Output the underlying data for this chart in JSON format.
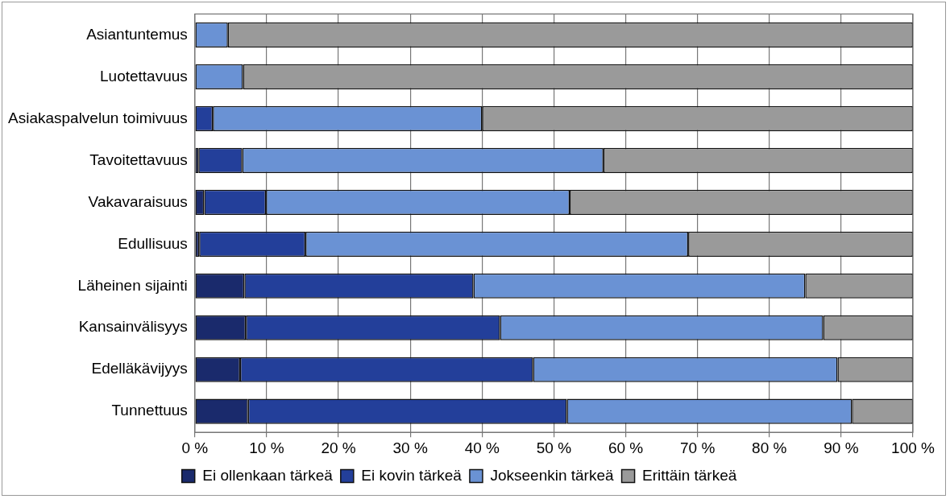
{
  "chart_data": {
    "type": "bar",
    "orientation": "horizontal",
    "stacked": true,
    "categories": [
      "Asiantuntemus",
      "Luotettavuus",
      "Asiakaspalvelun toimivuus",
      "Tavoitettavuus",
      "Vakavaraisuus",
      "Edullisuus",
      "Läheinen sijainti",
      "Kansainvälisyys",
      "Edelläkävijyys",
      "Tunnettuus"
    ],
    "series": [
      {
        "name": "Ei ollenkaan tärkeä",
        "color": "#1a2a6c",
        "values": [
          0,
          0,
          0,
          0.5,
          1.3,
          0.6,
          6.9,
          7.1,
          6.3,
          7.4
        ]
      },
      {
        "name": "Ei kovin tärkeä",
        "color": "#233f9a",
        "values": [
          0,
          0,
          2.5,
          6.1,
          8.6,
          14.8,
          31.9,
          35.4,
          40.8,
          44.4
        ]
      },
      {
        "name": "Jokseenkin tärkeä",
        "color": "#6a92d4",
        "values": [
          4.6,
          6.7,
          37.5,
          50.3,
          42.3,
          53.3,
          46.2,
          45,
          42.4,
          39.7
        ]
      },
      {
        "name": "Erittäin tärkeä",
        "color": "#9a9a9a",
        "values": [
          95.4,
          93.3,
          60,
          43.1,
          47.8,
          31.3,
          15,
          12.5,
          10.5,
          8.5
        ]
      }
    ],
    "xlim": [
      0,
      100
    ],
    "xticks": [
      {
        "value": 0,
        "label": "0 %"
      },
      {
        "value": 10,
        "label": "10 %"
      },
      {
        "value": 20,
        "label": "20 %"
      },
      {
        "value": 30,
        "label": "30 %"
      },
      {
        "value": 40,
        "label": "40 %"
      },
      {
        "value": 50,
        "label": "50 %"
      },
      {
        "value": 60,
        "label": "60 %"
      },
      {
        "value": 70,
        "label": "70 %"
      },
      {
        "value": 80,
        "label": "80 %"
      },
      {
        "value": 90,
        "label": "90 %"
      },
      {
        "value": 100,
        "label": "100 %"
      }
    ],
    "grid": "x",
    "legend": "bottom"
  }
}
